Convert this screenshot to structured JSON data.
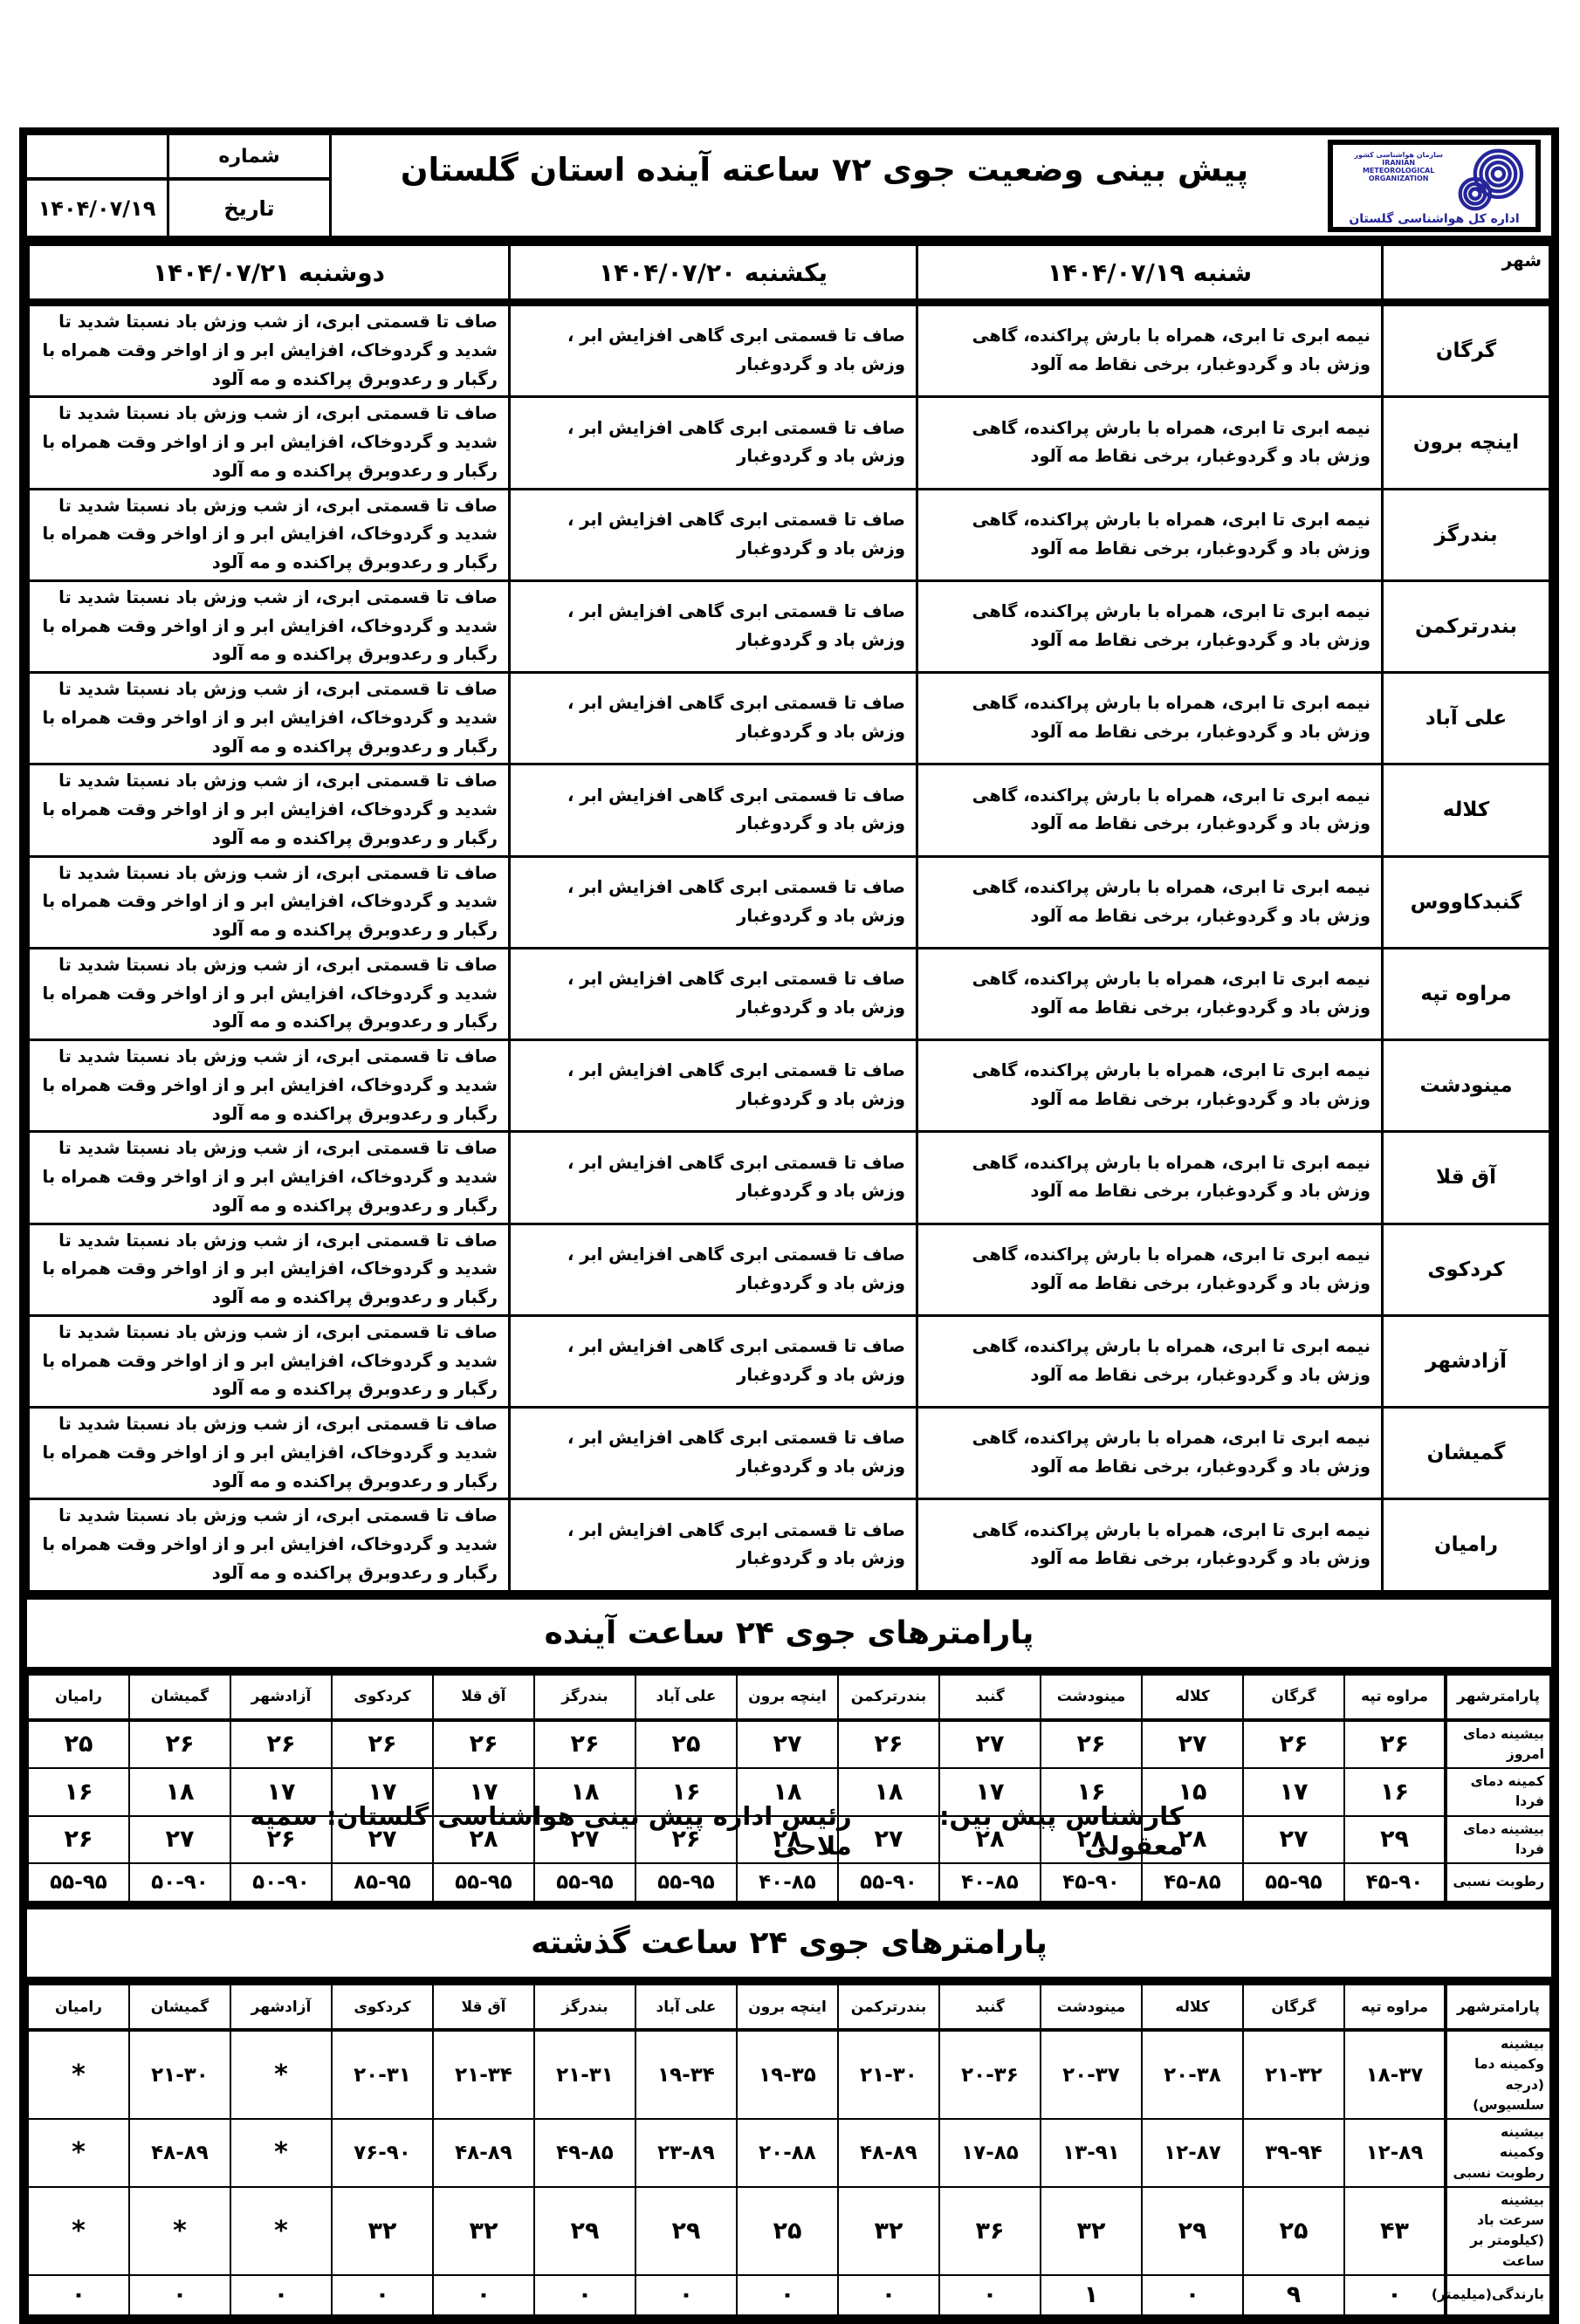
{
  "header": {
    "title": "پیش بینی وضعیت جوی ۷۲ ساعته آینده استان گلستان",
    "number_label": "شماره",
    "number_value": "",
    "date_label": "تاریخ",
    "date_value": "۱۴۰۴/۰۷/۱۹",
    "logo": {
      "org_fa": "سازمان هواشناسی کشور",
      "org_en_line1": "IRANIAN",
      "org_en_line2": "METEOROLOGICAL",
      "org_en_line3": "ORGANIZATION",
      "dept": "اداره کل هواشناسی گلستان",
      "color": "#26269b",
      "icon": "meteorology-spiral-logo"
    }
  },
  "forecast_table": {
    "city_header": "شهر",
    "day_headers": [
      "شنبه ۱۴۰۴/۰۷/۱۹",
      "یکشنبه ۱۴۰۴/۰۷/۲۰",
      "دوشنبه ۱۴۰۴/۰۷/۲۱"
    ],
    "forecasts": {
      "day1": "نیمه ابری تا ابری، همراه با بارش پراکنده، گاهی وزش باد و گردوغبار، برخی نقاط مه آلود",
      "day2": "صاف تا قسمتی ابری گاهی افزایش ابر ، وزش باد و گردوغبار",
      "day3": "صاف تا قسمتی ابری، از شب وزش باد نسبتا شدید تا شدید و گردوخاک، افزایش ابر و از اواخر وقت همراه با رگبار و رعدوبرق پراکنده و مه آلود"
    },
    "cities": [
      "گرگان",
      "اینچه برون",
      "بندرگز",
      "بندرترکمن",
      "علی آباد",
      "کلاله",
      "گنبدکاووس",
      "مراوه تپه",
      "مینودشت",
      "آق قلا",
      "کردکوی",
      "آزادشهر",
      "گمیشان",
      "رامیان"
    ]
  },
  "future_params": {
    "title": "پارامترهای جوی ۲۴ ساعت آینده",
    "corner_label": "پارامترشهر",
    "columns": [
      "مراوه تپه",
      "گرگان",
      "کلاله",
      "مینودشت",
      "گنبد",
      "بندرترکمن",
      "اینچه برون",
      "علی آباد",
      "بندرگز",
      "آق قلا",
      "کردکوی",
      "آزادشهر",
      "گمیشان",
      "رامیان"
    ],
    "rows": [
      {
        "label": "بیشینه دمای امروز",
        "values": [
          "۲۶",
          "۲۶",
          "۲۷",
          "۲۶",
          "۲۷",
          "۲۶",
          "۲۷",
          "۲۵",
          "۲۶",
          "۲۶",
          "۲۶",
          "۲۶",
          "۲۶",
          "۲۵"
        ]
      },
      {
        "label": "کمینه دمای فردا",
        "values": [
          "۱۶",
          "۱۷",
          "۱۵",
          "۱۶",
          "۱۷",
          "۱۸",
          "۱۸",
          "۱۶",
          "۱۸",
          "۱۷",
          "۱۷",
          "۱۷",
          "۱۸",
          "۱۶"
        ]
      },
      {
        "label": "بیشینه دمای فردا",
        "values": [
          "۲۹",
          "۲۷",
          "۲۸",
          "۲۸",
          "۲۸",
          "۲۷",
          "۲۸",
          "۲۶",
          "۲۷",
          "۲۸",
          "۲۷",
          "۲۶",
          "۲۷",
          "۲۶"
        ]
      },
      {
        "label": "رطوبت نسبی",
        "values": [
          "۴۵-۹۰",
          "۵۵-۹۵",
          "۴۵-۸۵",
          "۴۵-۹۰",
          "۴۰-۸۵",
          "۵۵-۹۰",
          "۴۰-۸۵",
          "۵۵-۹۵",
          "۵۵-۹۵",
          "۵۵-۹۵",
          "۸۵-۹۵",
          "۵۰-۹۰",
          "۵۰-۹۰",
          "۵۵-۹۵"
        ]
      }
    ]
  },
  "past_params": {
    "title": "پارامترهای جوی ۲۴ ساعت گذشته",
    "corner_label": "پارامترشهر",
    "columns": [
      "مراوه تپه",
      "گرگان",
      "کلاله",
      "مینودشت",
      "گنبد",
      "بندرترکمن",
      "اینچه برون",
      "علی آباد",
      "بندرگز",
      "آق قلا",
      "کردکوی",
      "آزادشهر",
      "گمیشان",
      "رامیان"
    ],
    "rows": [
      {
        "label": "بیشینه وکمینه دما (درجه سلسیوس)",
        "values": [
          "۱۸-۳۷",
          "۲۱-۳۲",
          "۲۰-۳۸",
          "۲۰-۳۷",
          "۲۰-۳۶",
          "۲۱-۳۰",
          "۱۹-۳۵",
          "۱۹-۳۴",
          "۲۱-۳۱",
          "۲۱-۳۴",
          "۲۰-۳۱",
          "*",
          "۲۱-۳۰",
          "*"
        ]
      },
      {
        "label": "بیشینه وکمینه رطوبت نسبی",
        "values": [
          "۱۲-۸۹",
          "۳۹-۹۴",
          "۱۲-۸۷",
          "۱۳-۹۱",
          "۱۷-۸۵",
          "۴۸-۸۹",
          "۲۰-۸۸",
          "۲۳-۸۹",
          "۴۹-۸۵",
          "۴۸-۸۹",
          "۷۶-۹۰",
          "*",
          "۴۸-۸۹",
          "*"
        ]
      },
      {
        "label": "بیشینه سرعت باد (کیلومتر بر ساعت",
        "values": [
          "۴۳",
          "۲۵",
          "۲۹",
          "۳۲",
          "۳۶",
          "۳۲",
          "۲۵",
          "۲۹",
          "۲۹",
          "۳۲",
          "۳۲",
          "*",
          "*",
          "*"
        ]
      },
      {
        "label": "بارندگی(میلیمتر)",
        "values": [
          "۰",
          "۹",
          "۰",
          "۱",
          "۰",
          "۰",
          "۰",
          "۰",
          "۰",
          "۰",
          "۰",
          "۰",
          "۰",
          "۰"
        ]
      }
    ]
  },
  "footer": {
    "forecaster": "کارشناس پیش بین: معقولی",
    "chief": "رئیس اداره پیش بینی هواشناسی گلستان: سمیه ملاحی"
  }
}
